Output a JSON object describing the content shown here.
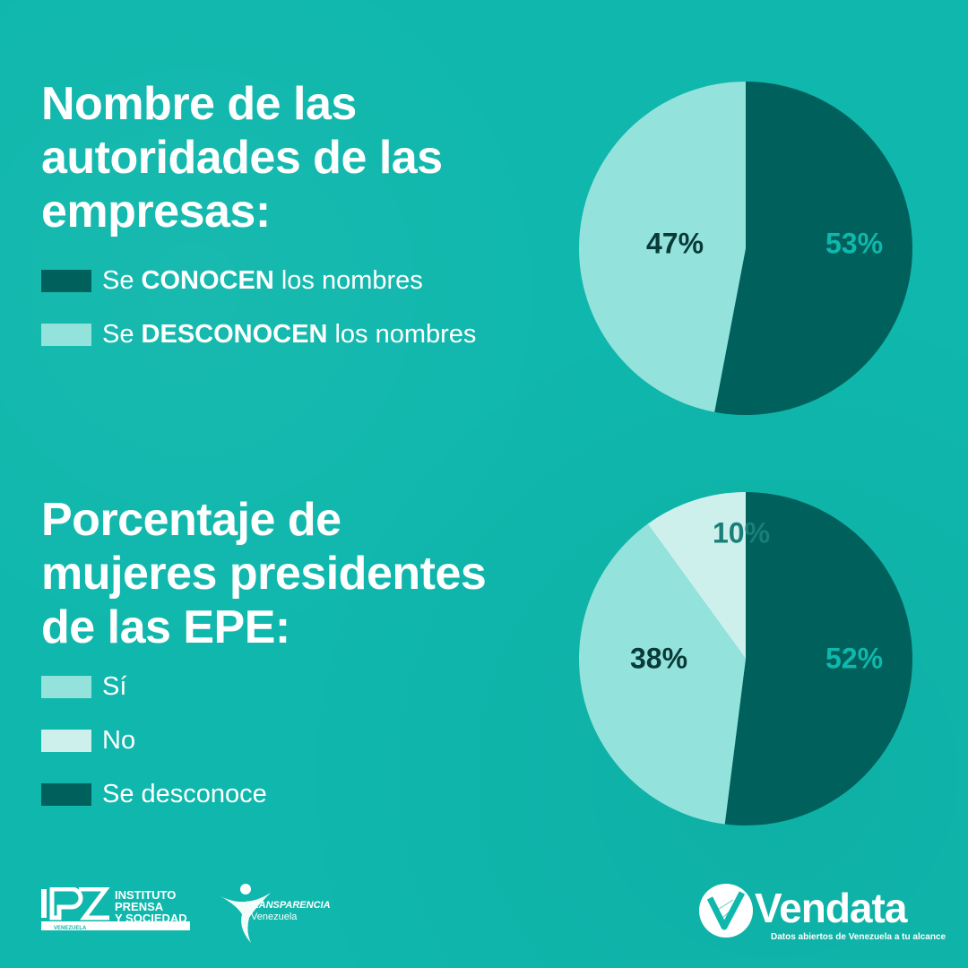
{
  "colors": {
    "background": "#0fb7ac",
    "dark": "#00605c",
    "light": "#94e2dc",
    "lighter": "#cdf0ed"
  },
  "chart_data": [
    {
      "type": "pie",
      "title_lines": [
        "Nombre de las",
        "autoridades de las",
        "empresas:"
      ],
      "legend": [
        {
          "pre": "Se ",
          "bold": "CONOCEN",
          "post": " los nombres",
          "color": "#00605c"
        },
        {
          "pre": "Se ",
          "bold": "DESCONOCEN",
          "post": " los nombres",
          "color": "#94e2dc"
        }
      ],
      "slices": [
        {
          "name": "Se CONOCEN los nombres",
          "value": 53,
          "label": "53%",
          "color": "#00605c",
          "label_color": "#0fb7ac"
        },
        {
          "name": "Se DESCONOCEN los nombres",
          "value": 47,
          "label": "47%",
          "color": "#94e2dc",
          "label_color": "#083a37"
        }
      ]
    },
    {
      "type": "pie",
      "title_lines": [
        "Porcentaje de",
        "mujeres presidentes",
        "de las EPE:"
      ],
      "legend": [
        {
          "pre": "Sí",
          "bold": "",
          "post": "",
          "color": "#94e2dc"
        },
        {
          "pre": "No",
          "bold": "",
          "post": "",
          "color": "#cdf0ed"
        },
        {
          "pre": "Se desconoce",
          "bold": "",
          "post": "",
          "color": "#00605c"
        }
      ],
      "slices": [
        {
          "name": "Se desconoce",
          "value": 52,
          "label": "52%",
          "color": "#00605c",
          "label_color": "#0fb7ac"
        },
        {
          "name": "Sí",
          "value": 38,
          "label": "38%",
          "color": "#94e2dc",
          "label_color": "#083a37"
        },
        {
          "name": "No",
          "value": 10,
          "label": "10%",
          "color": "#cdf0ed",
          "label_color": "#1a7f78"
        }
      ]
    }
  ],
  "footer": {
    "ipys": {
      "lines": [
        "INSTITUTO",
        "PRENSA",
        "Y SOCIEDAD"
      ],
      "sub": "VENEZUELA"
    },
    "transparencia": {
      "line1": "TRANSPARENCIA",
      "line2": "Venezuela"
    },
    "vendata": {
      "name": "Vendata",
      "tagline": "Datos abiertos de Venezuela a tu alcance"
    }
  }
}
